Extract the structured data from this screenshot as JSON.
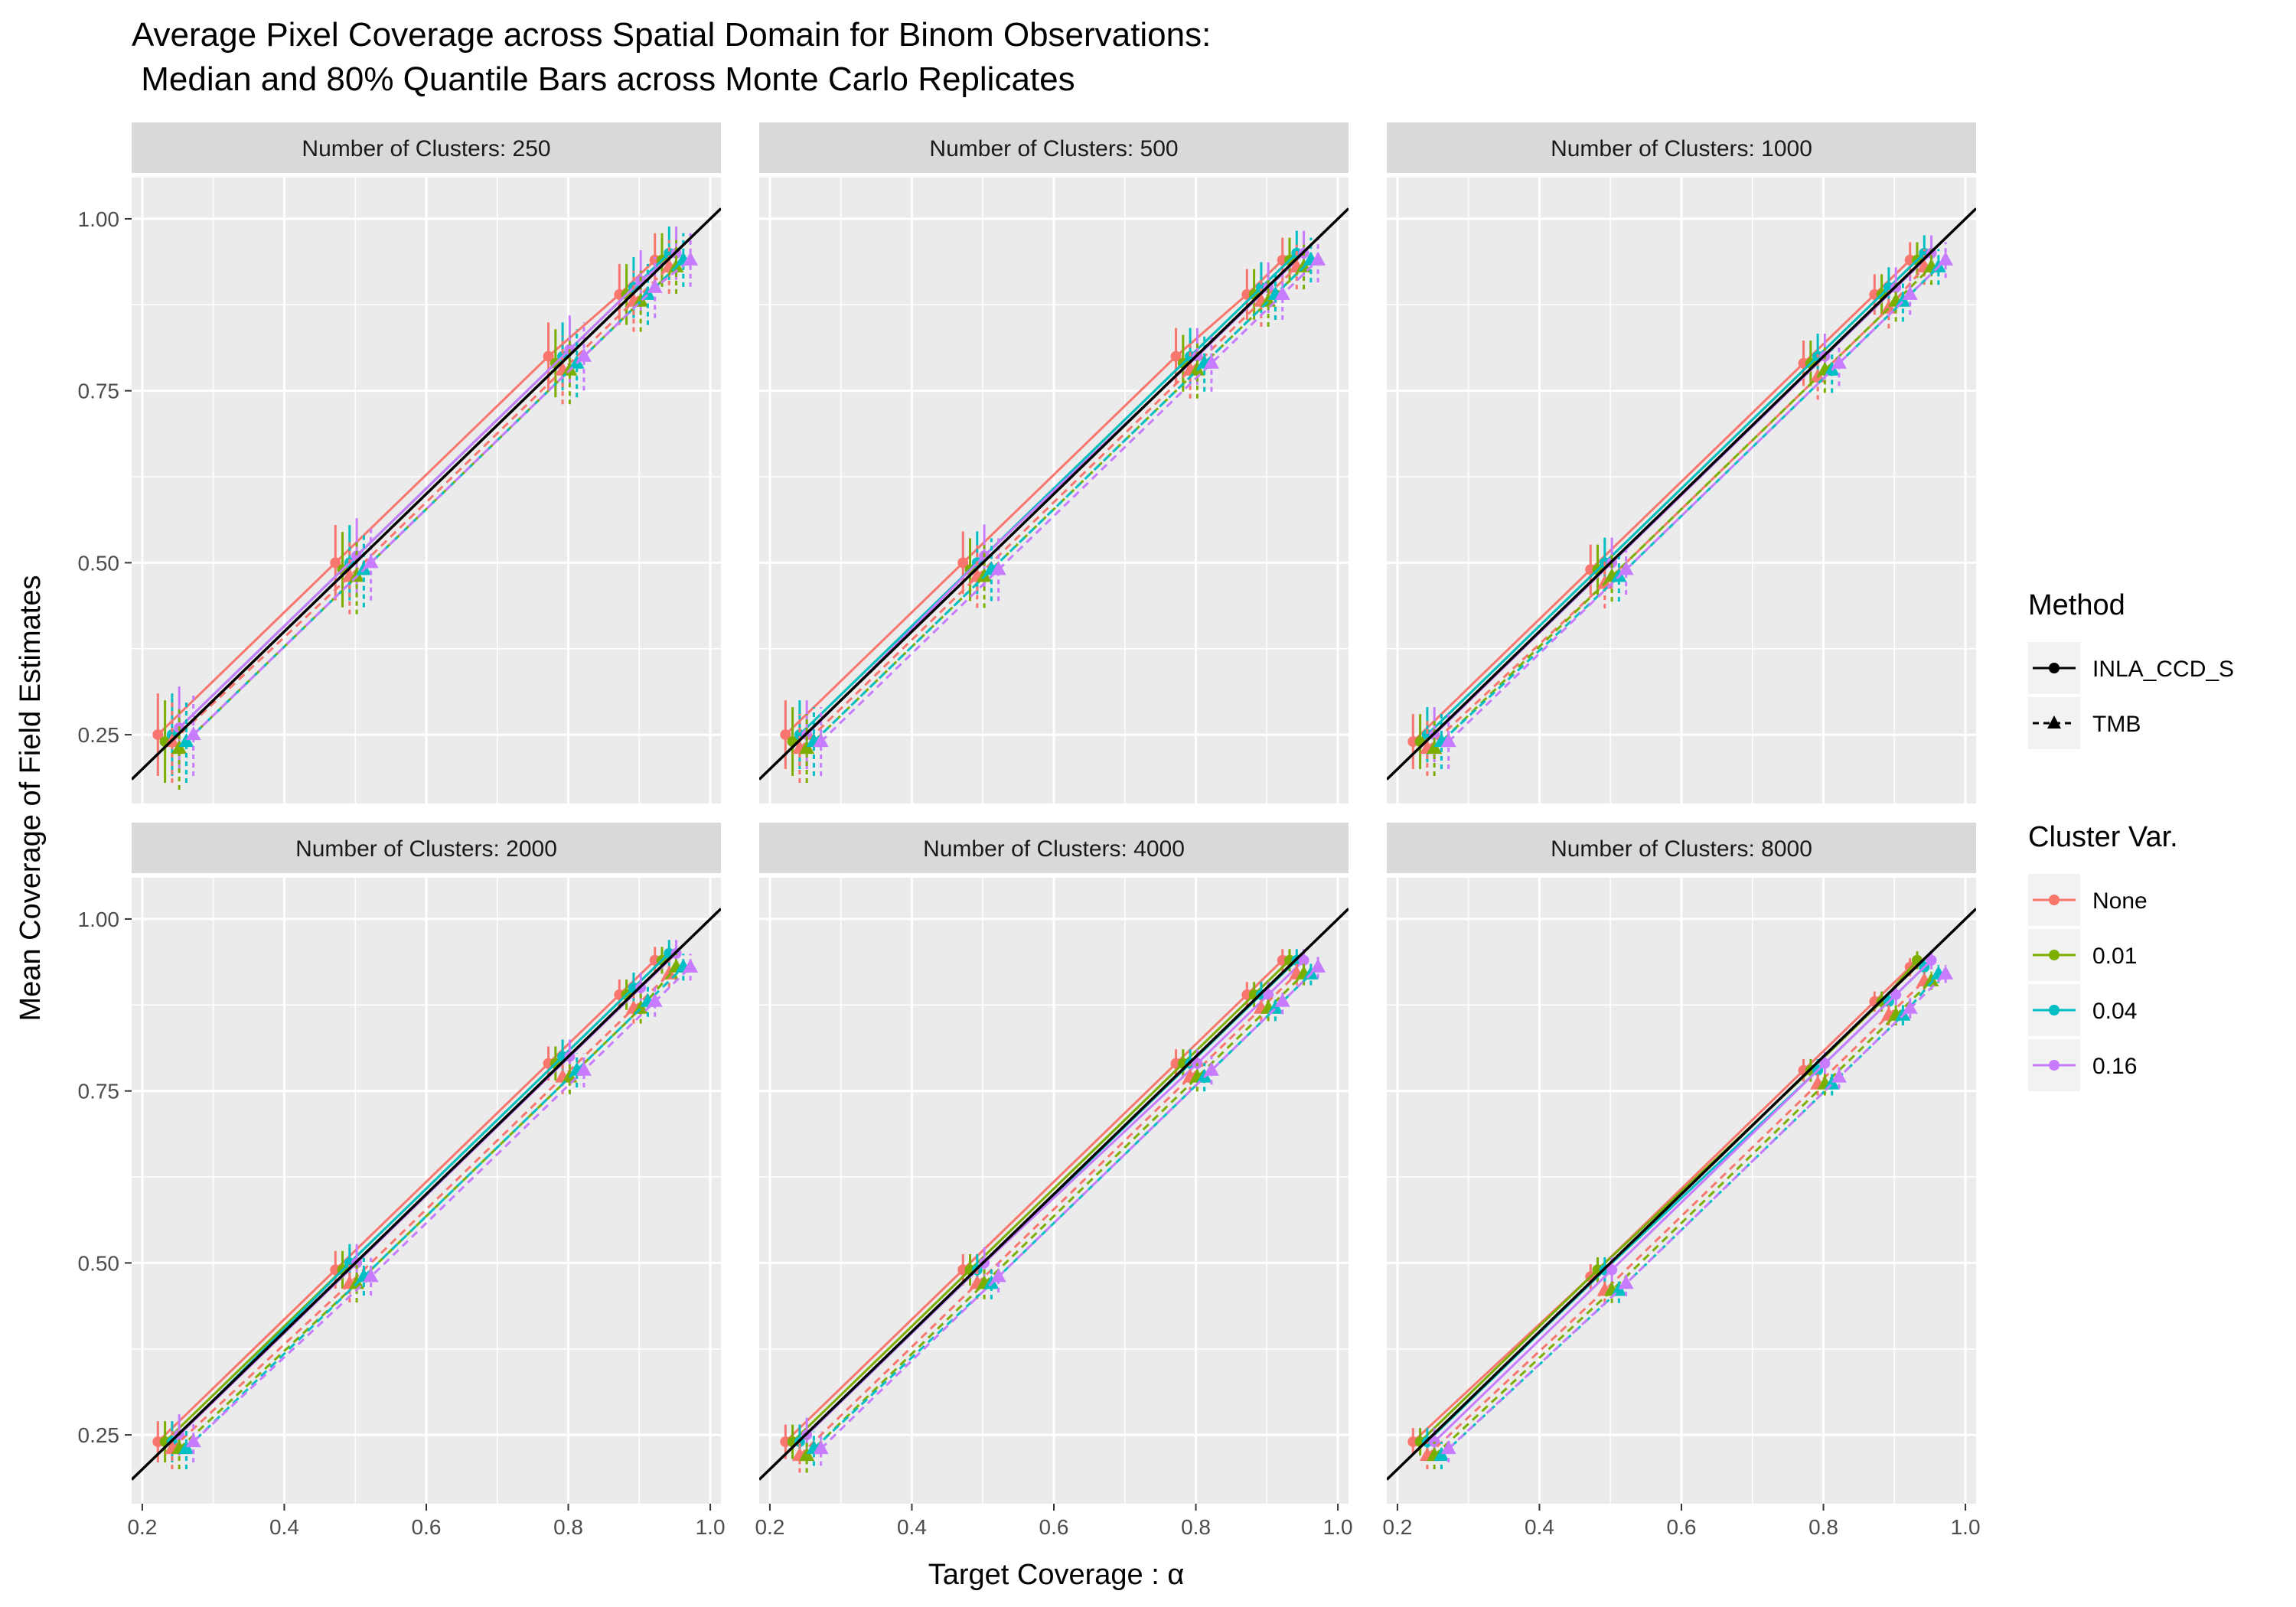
{
  "chart_data": {
    "type": "line",
    "title_line1": "Average Pixel Coverage across Spatial Domain for Binom Observations:",
    "title_line2": " Median and 80% Quantile Bars across Monte Carlo Replicates",
    "xlabel": "Target Coverage :  α",
    "ylabel": "Mean Coverage of Field Estimates",
    "xlim": [
      0.185,
      1.015
    ],
    "ylim": [
      0.15,
      1.06
    ],
    "x_ticks": [
      0.2,
      0.4,
      0.6,
      0.8,
      1.0
    ],
    "x_tick_labels": [
      "0.2",
      "0.4",
      "0.6",
      "0.8",
      "1.0"
    ],
    "y_ticks": [
      0.25,
      0.5,
      0.75,
      1.0
    ],
    "y_tick_labels": [
      "0.25",
      "0.50",
      "0.75",
      "1.00"
    ],
    "grid": true,
    "reference_line": "y = x",
    "target_coverage": [
      0.25,
      0.5,
      0.8,
      0.9,
      0.95
    ],
    "methods": [
      {
        "name": "INLA_CCD_S",
        "linetype": "solid",
        "shape": "circle"
      },
      {
        "name": "TMB",
        "linetype": "dashed",
        "shape": "triangle"
      }
    ],
    "cluster_var": [
      {
        "name": "None",
        "color": "#F8766D"
      },
      {
        "name": "0.01",
        "color": "#7CAE00"
      },
      {
        "name": "0.04",
        "color": "#00BFC4"
      },
      {
        "name": "0.16",
        "color": "#C77CFF"
      }
    ],
    "legend_method_title": "Method",
    "legend_cluster_title": "Cluster Var.",
    "legend_position": "right",
    "panels": [
      {
        "label": "Number of Clusters: 250",
        "clusters": 250,
        "medians": {
          "INLA_CCD_S": [
            [
              0.25,
              0.5,
              0.8,
              0.89,
              0.94
            ],
            [
              0.24,
              0.49,
              0.79,
              0.89,
              0.94
            ],
            [
              0.25,
              0.5,
              0.8,
              0.9,
              0.95
            ],
            [
              0.26,
              0.51,
              0.81,
              0.91,
              0.95
            ]
          ],
          "TMB": [
            [
              0.24,
              0.48,
              0.78,
              0.88,
              0.93
            ],
            [
              0.23,
              0.48,
              0.78,
              0.88,
              0.93
            ],
            [
              0.24,
              0.49,
              0.79,
              0.89,
              0.94
            ],
            [
              0.25,
              0.5,
              0.8,
              0.9,
              0.94
            ]
          ]
        },
        "spread": 0.06
      },
      {
        "label": "Number of Clusters: 500",
        "clusters": 500,
        "medians": {
          "INLA_CCD_S": [
            [
              0.25,
              0.5,
              0.8,
              0.89,
              0.94
            ],
            [
              0.24,
              0.49,
              0.79,
              0.89,
              0.94
            ],
            [
              0.25,
              0.5,
              0.8,
              0.9,
              0.95
            ],
            [
              0.25,
              0.51,
              0.8,
              0.9,
              0.95
            ]
          ],
          "TMB": [
            [
              0.23,
              0.48,
              0.78,
              0.88,
              0.93
            ],
            [
              0.23,
              0.48,
              0.78,
              0.88,
              0.93
            ],
            [
              0.24,
              0.49,
              0.79,
              0.89,
              0.94
            ],
            [
              0.24,
              0.49,
              0.79,
              0.89,
              0.94
            ]
          ]
        },
        "spread": 0.05
      },
      {
        "label": "Number of Clusters: 1000",
        "clusters": 1000,
        "medians": {
          "INLA_CCD_S": [
            [
              0.24,
              0.49,
              0.79,
              0.89,
              0.94
            ],
            [
              0.24,
              0.49,
              0.79,
              0.89,
              0.94
            ],
            [
              0.25,
              0.5,
              0.8,
              0.9,
              0.95
            ],
            [
              0.25,
              0.5,
              0.8,
              0.9,
              0.95
            ]
          ],
          "TMB": [
            [
              0.23,
              0.47,
              0.77,
              0.87,
              0.93
            ],
            [
              0.23,
              0.48,
              0.78,
              0.88,
              0.93
            ],
            [
              0.24,
              0.48,
              0.78,
              0.88,
              0.93
            ],
            [
              0.24,
              0.49,
              0.79,
              0.89,
              0.94
            ]
          ]
        },
        "spread": 0.04
      },
      {
        "label": "Number of Clusters: 2000",
        "clusters": 2000,
        "medians": {
          "INLA_CCD_S": [
            [
              0.24,
              0.49,
              0.79,
              0.89,
              0.94
            ],
            [
              0.24,
              0.49,
              0.79,
              0.89,
              0.94
            ],
            [
              0.24,
              0.5,
              0.8,
              0.9,
              0.95
            ],
            [
              0.25,
              0.5,
              0.8,
              0.9,
              0.95
            ]
          ],
          "TMB": [
            [
              0.23,
              0.47,
              0.77,
              0.87,
              0.92
            ],
            [
              0.23,
              0.47,
              0.77,
              0.87,
              0.93
            ],
            [
              0.23,
              0.48,
              0.78,
              0.88,
              0.93
            ],
            [
              0.24,
              0.48,
              0.78,
              0.88,
              0.93
            ]
          ]
        },
        "spread": 0.03
      },
      {
        "label": "Number of Clusters: 4000",
        "clusters": 4000,
        "medians": {
          "INLA_CCD_S": [
            [
              0.24,
              0.49,
              0.79,
              0.89,
              0.94
            ],
            [
              0.24,
              0.49,
              0.79,
              0.89,
              0.94
            ],
            [
              0.24,
              0.49,
              0.79,
              0.89,
              0.94
            ],
            [
              0.25,
              0.5,
              0.79,
              0.89,
              0.94
            ]
          ],
          "TMB": [
            [
              0.22,
              0.47,
              0.77,
              0.87,
              0.92
            ],
            [
              0.22,
              0.47,
              0.77,
              0.87,
              0.92
            ],
            [
              0.23,
              0.47,
              0.77,
              0.87,
              0.92
            ],
            [
              0.23,
              0.48,
              0.78,
              0.88,
              0.93
            ]
          ]
        },
        "spread": 0.025
      },
      {
        "label": "Number of Clusters: 8000",
        "clusters": 8000,
        "medians": {
          "INLA_CCD_S": [
            [
              0.24,
              0.48,
              0.78,
              0.88,
              0.93
            ],
            [
              0.24,
              0.49,
              0.78,
              0.88,
              0.94
            ],
            [
              0.24,
              0.49,
              0.78,
              0.88,
              0.93
            ],
            [
              0.24,
              0.49,
              0.79,
              0.89,
              0.94
            ]
          ],
          "TMB": [
            [
              0.22,
              0.46,
              0.76,
              0.86,
              0.91
            ],
            [
              0.22,
              0.46,
              0.76,
              0.86,
              0.91
            ],
            [
              0.22,
              0.46,
              0.76,
              0.86,
              0.92
            ],
            [
              0.23,
              0.47,
              0.77,
              0.87,
              0.92
            ]
          ]
        },
        "spread": 0.02
      }
    ]
  }
}
